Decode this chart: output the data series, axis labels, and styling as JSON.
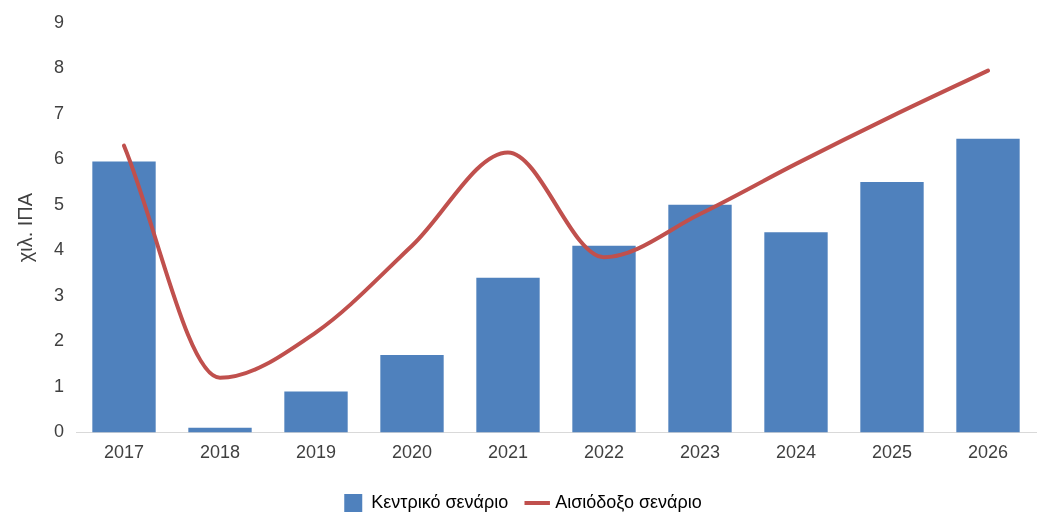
{
  "chart_data": {
    "type": "bar",
    "ylabel": "χιλ. ΙΠΑ",
    "categories": [
      "2017",
      "2018",
      "2019",
      "2020",
      "2021",
      "2022",
      "2023",
      "2024",
      "2025",
      "2026"
    ],
    "series": [
      {
        "name": "Κεντρικό σενάριο",
        "color": "#4f81bd",
        "values": [
          5.95,
          0.1,
          0.9,
          1.7,
          3.4,
          4.1,
          5.0,
          4.4,
          5.5,
          6.45
        ]
      },
      {
        "name": "Αισιόδοξο σενάριο",
        "type": "line",
        "color": "#c0504d",
        "values": [
          6.3,
          1.2,
          2.2,
          4.1,
          6.15,
          3.85,
          4.8,
          5.9,
          6.95,
          7.95
        ]
      }
    ],
    "ylim": [
      0,
      9
    ],
    "yticks": [
      0,
      1,
      2,
      3,
      4,
      5,
      6,
      7,
      8,
      9
    ],
    "grid": false,
    "legend": "bottom",
    "marker": "none"
  }
}
